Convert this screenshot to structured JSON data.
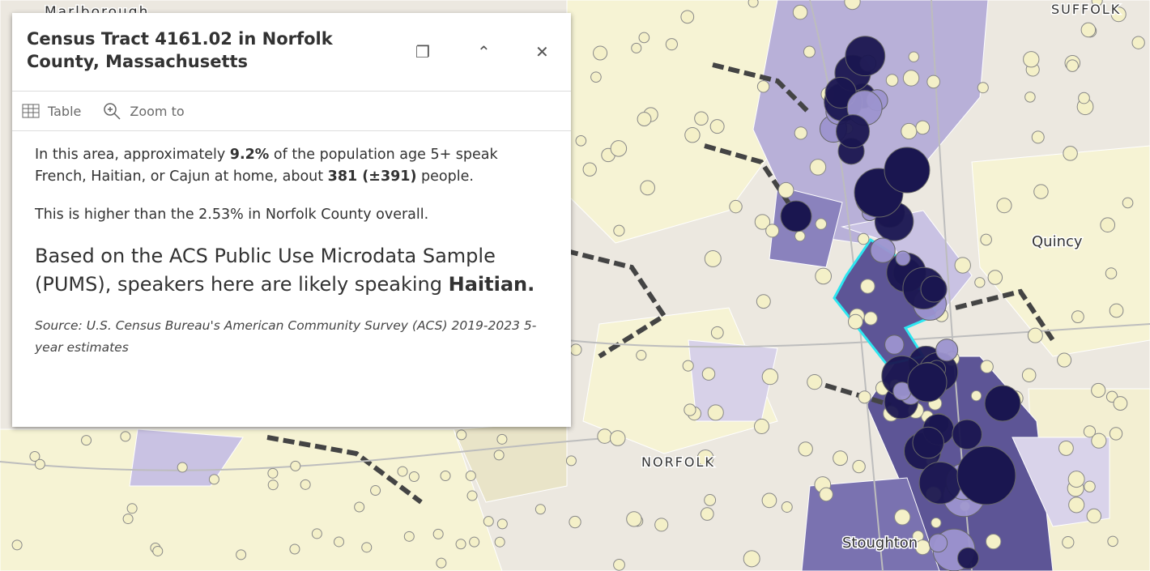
{
  "map": {
    "labels": [
      "Marlborough",
      "SUFFOLK",
      "Quincy",
      "NORFOLK",
      "Stoughton"
    ]
  },
  "popup": {
    "title": "Census Tract 4161.02 in Norfolk County, Massachusetts",
    "actions": [
      "Table",
      "Zoom to"
    ],
    "paragraph1": [
      "In this area, approximately ",
      "9.2%",
      " of the population age 5+ speak French, Haitian, or Cajun at home, about ",
      "381 (±391)",
      " people."
    ],
    "paragraph2": "This is higher than the 2.53% in Norfolk County overall.",
    "paragraph3": [
      "Based on the ACS Public Use Microdata Sample (PUMS), speakers here are likely speaking ",
      "Haitian."
    ],
    "source": "Source: U.S. Census Bureau's American Community Survey (ACS) 2019-2023 5-year estimates"
  }
}
